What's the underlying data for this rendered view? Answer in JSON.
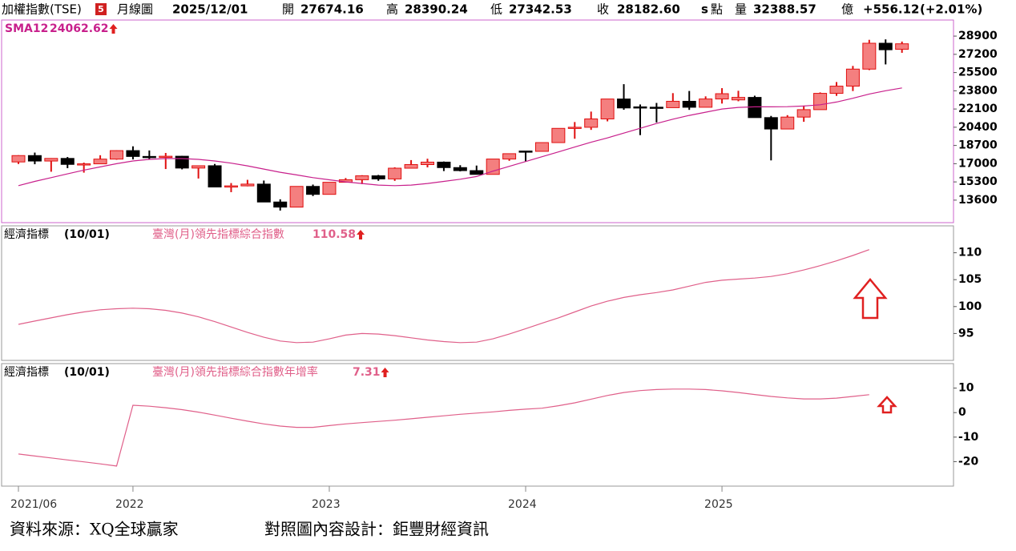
{
  "header": {
    "title": "加權指數(TSE)",
    "badge": "5",
    "period": "月線圖",
    "date": "2025/12/01",
    "open_label": "開",
    "open": "27674.16",
    "high_label": "高",
    "high": "28390.24",
    "low_label": "低",
    "low": "27342.53",
    "close_label": "收",
    "close": "28182.60",
    "close_flag": "s",
    "unit": "點",
    "volume_label": "量",
    "volume": "32388.57",
    "volume_unit": "億",
    "change": "+556.12",
    "change_pct": "(+2.01%)"
  },
  "footer": {
    "source": "資料來源：XQ全球贏家",
    "design": "對照圖內容設計：鉅豐財經資訊"
  },
  "chart_data": [
    {
      "type": "candlestick",
      "categories": [
        "2021/06",
        null,
        null,
        null,
        null,
        null,
        null,
        "2022",
        null,
        null,
        null,
        null,
        null,
        null,
        null,
        null,
        null,
        null,
        null,
        "2023",
        null,
        null,
        null,
        null,
        null,
        null,
        null,
        null,
        null,
        null,
        null,
        "2024",
        null,
        null,
        null,
        null,
        null,
        null,
        null,
        null,
        null,
        null,
        null,
        "2025",
        null,
        null,
        null,
        null,
        null,
        null,
        null,
        null,
        null,
        null,
        null
      ],
      "open": [
        17162,
        17755,
        17247,
        17490,
        16935,
        16987,
        17427,
        18218,
        17674,
        17652,
        17693,
        16592,
        16807,
        14825,
        14930,
        15095,
        13425,
        12949,
        14880,
        14138,
        15265,
        15503,
        15868,
        15579,
        16579,
        16916,
        17145,
        16635,
        16353,
        16001,
        17433,
        18180,
        18151,
        18966,
        20294,
        20396,
        21174,
        23032,
        22300,
        22268,
        22225,
        22820,
        22263,
        23036,
        22950,
        23182,
        21299,
        20235,
        21347,
        22040,
        23559,
        24233,
        25822,
        28234,
        27674.16
      ],
      "high": [
        17790,
        18034,
        17516,
        17622,
        17100,
        17788,
        18248,
        18619,
        18231,
        18001,
        17730,
        16807,
        16974,
        15194,
        15495,
        15427,
        13678,
        14880,
        15051,
        15265,
        15660,
        15925,
        15953,
        16662,
        17334,
        17463,
        17202,
        16859,
        16825,
        17433,
        17945,
        18178,
        18966,
        20294,
        20886,
        21858,
        23032,
        24416,
        22524,
        22667,
        23580,
        23782,
        23280,
        24045,
        23800,
        23340,
        21455,
        21526,
        22421,
        23649,
        24616,
        26118,
        28554,
        28593,
        28390.24
      ],
      "low": [
        16970,
        16948,
        16249,
        16581,
        16162,
        16987,
        17367,
        17395,
        17398,
        16501,
        16470,
        15616,
        14825,
        14343,
        14887,
        13424,
        12629,
        12949,
        13981,
        14138,
        15265,
        15094,
        15406,
        15394,
        16579,
        16654,
        16310,
        16280,
        16001,
        16001,
        17265,
        17181,
        18131,
        18966,
        19325,
        20153,
        20948,
        22029,
        19662,
        20846,
        22225,
        22020,
        22263,
        22607,
        22822,
        21299,
        17307,
        20235,
        20906,
        22040,
        23326,
        23774,
        25726,
        26259,
        27342.53
      ],
      "close": [
        17755,
        17247,
        17490,
        16935,
        16987,
        17427,
        18218,
        17674,
        17652,
        17693,
        16592,
        16807,
        14825,
        14930,
        15095,
        13425,
        12949,
        14880,
        14138,
        15265,
        15503,
        15868,
        15579,
        16579,
        16916,
        17145,
        16635,
        16353,
        16001,
        17433,
        17931,
        18151,
        18966,
        20294,
        20396,
        21174,
        23032,
        22199,
        22268,
        22225,
        22820,
        22263,
        23036,
        23526,
        23182,
        21299,
        20235,
        21347,
        22040,
        23559,
        24233,
        25822,
        28234,
        27627,
        28182.6
      ],
      "up_color": "#f47f7f",
      "up_edge_color": "#e01010",
      "down_color": "#000000",
      "series": [
        {
          "name": "SMA12",
          "color": "#c8208c",
          "values": [
            14950,
            15350,
            15700,
            16050,
            16400,
            16700,
            17000,
            17250,
            17400,
            17480,
            17480,
            17400,
            17250,
            17050,
            16800,
            16500,
            16200,
            15950,
            15700,
            15500,
            15300,
            15150,
            15000,
            14950,
            15000,
            15150,
            15350,
            15550,
            15800,
            16300,
            16750,
            17200,
            17650,
            18100,
            18550,
            19000,
            19400,
            19850,
            20300,
            20750,
            21150,
            21500,
            21800,
            22100,
            22250,
            22300,
            22300,
            22320,
            22380,
            22500,
            22750,
            23100,
            23500,
            23800,
            24062.62
          ]
        }
      ],
      "ylim": [
        11500,
        30400
      ],
      "yticks": [
        28900,
        27200,
        25500,
        23800,
        22100,
        20400,
        18700,
        17000,
        15300,
        13600
      ]
    },
    {
      "type": "line",
      "indicator_label": "經濟指標",
      "date_label": "(10/01)",
      "series": [
        {
          "name": "臺灣(月)領先指標綜合指數",
          "color": "#e0608a",
          "values": [
            96.7,
            97.3,
            97.9,
            98.5,
            99.0,
            99.4,
            99.6,
            99.7,
            99.6,
            99.3,
            98.8,
            98.1,
            97.2,
            96.2,
            95.2,
            94.3,
            93.6,
            93.3,
            93.4,
            94.0,
            94.7,
            95.0,
            94.9,
            94.6,
            94.2,
            93.8,
            93.5,
            93.3,
            93.4,
            94.0,
            94.9,
            95.9,
            96.9,
            97.9,
            99.0,
            100.1,
            101.0,
            101.7,
            102.2,
            102.6,
            103.1,
            103.8,
            104.5,
            104.9,
            105.1,
            105.3,
            105.6,
            106.1,
            106.8,
            107.6,
            108.5,
            109.5,
            110.58,
            null,
            null
          ]
        }
      ],
      "ylim": [
        90,
        115
      ],
      "yticks": [
        110,
        105,
        100,
        95
      ]
    },
    {
      "type": "line",
      "indicator_label": "經濟指標",
      "date_label": "(10/01)",
      "series": [
        {
          "name": "臺灣(月)領先指標綜合指數年增率",
          "color": "#e0608a",
          "values": [
            -16.9,
            -17.7,
            -18.5,
            -19.3,
            -20.1,
            -20.9,
            -21.8,
            3.0,
            2.6,
            2.0,
            1.2,
            0.2,
            -1.0,
            -2.3,
            -3.5,
            -4.6,
            -5.5,
            -6.0,
            -6.0,
            -5.3,
            -4.6,
            -4.1,
            -3.6,
            -3.1,
            -2.5,
            -1.9,
            -1.3,
            -0.7,
            -0.2,
            0.3,
            0.9,
            1.4,
            1.8,
            2.8,
            4.0,
            5.5,
            7.0,
            8.2,
            9.0,
            9.4,
            9.6,
            9.6,
            9.4,
            8.9,
            8.2,
            7.4,
            6.6,
            6.0,
            5.6,
            5.6,
            5.9,
            6.6,
            7.31,
            null,
            null
          ]
        }
      ],
      "ylim": [
        -30,
        20
      ],
      "yticks": [
        10,
        0,
        -10,
        -20
      ]
    }
  ]
}
